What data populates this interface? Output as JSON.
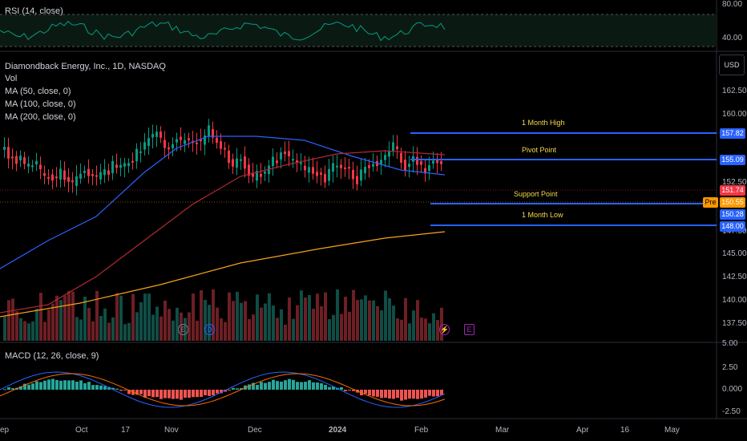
{
  "rsi": {
    "title": "RSI (14, close)",
    "ticks": [
      "80.00",
      "40.00"
    ]
  },
  "main": {
    "symbol_title": "Diamondback Energy, Inc., 1D, NASDAQ",
    "indicators": [
      "Vol",
      "MA (50, close, 0)",
      "MA (100, close, 0)",
      "MA (200, close, 0)"
    ],
    "currency": "USD",
    "price_ticks": [
      "162.50",
      "160.00",
      "152.50",
      "147.50",
      "145.00",
      "142.50",
      "140.00",
      "137.50"
    ],
    "levels": [
      {
        "label": "1 Month High",
        "value": "157.82",
        "color": "#2962ff"
      },
      {
        "label": "Pivot Point",
        "value": "155.09",
        "color": "#2962ff"
      },
      {
        "label": "Support Point",
        "value": "150.28",
        "color": "#2962ff"
      },
      {
        "label": "1 Month Low",
        "value": "148.00",
        "color": "#2962ff"
      }
    ],
    "last_price": {
      "value": "151.74",
      "color": "#f23645"
    },
    "pre_price": {
      "badge": "Pre",
      "value": "150.55",
      "color": "#ff9800"
    },
    "events": [
      {
        "glyph": "E",
        "color": "#787b86"
      },
      {
        "glyph": "D",
        "color": "#2962ff"
      },
      {
        "glyph": "⚡",
        "color": "#9c27b0"
      },
      {
        "glyph": "E",
        "color": "#9c27b0"
      }
    ]
  },
  "macd": {
    "title": "MACD (12, 26, close, 9)",
    "ticks": [
      "5.00",
      "2.50",
      "0.000",
      "-2.50"
    ]
  },
  "x_axis": [
    "ep",
    "Oct",
    "17",
    "Nov",
    "Dec",
    "2024",
    "Feb",
    "Mar",
    "Apr",
    "16",
    "May"
  ],
  "colors": {
    "up": "#089981",
    "down": "#f23645",
    "ma50": "#2962ff",
    "ma100": "#b22833",
    "ma200": "#f7a21b",
    "rsi": "#089981",
    "macd": "#2962ff",
    "signal": "#ff6d00"
  }
}
